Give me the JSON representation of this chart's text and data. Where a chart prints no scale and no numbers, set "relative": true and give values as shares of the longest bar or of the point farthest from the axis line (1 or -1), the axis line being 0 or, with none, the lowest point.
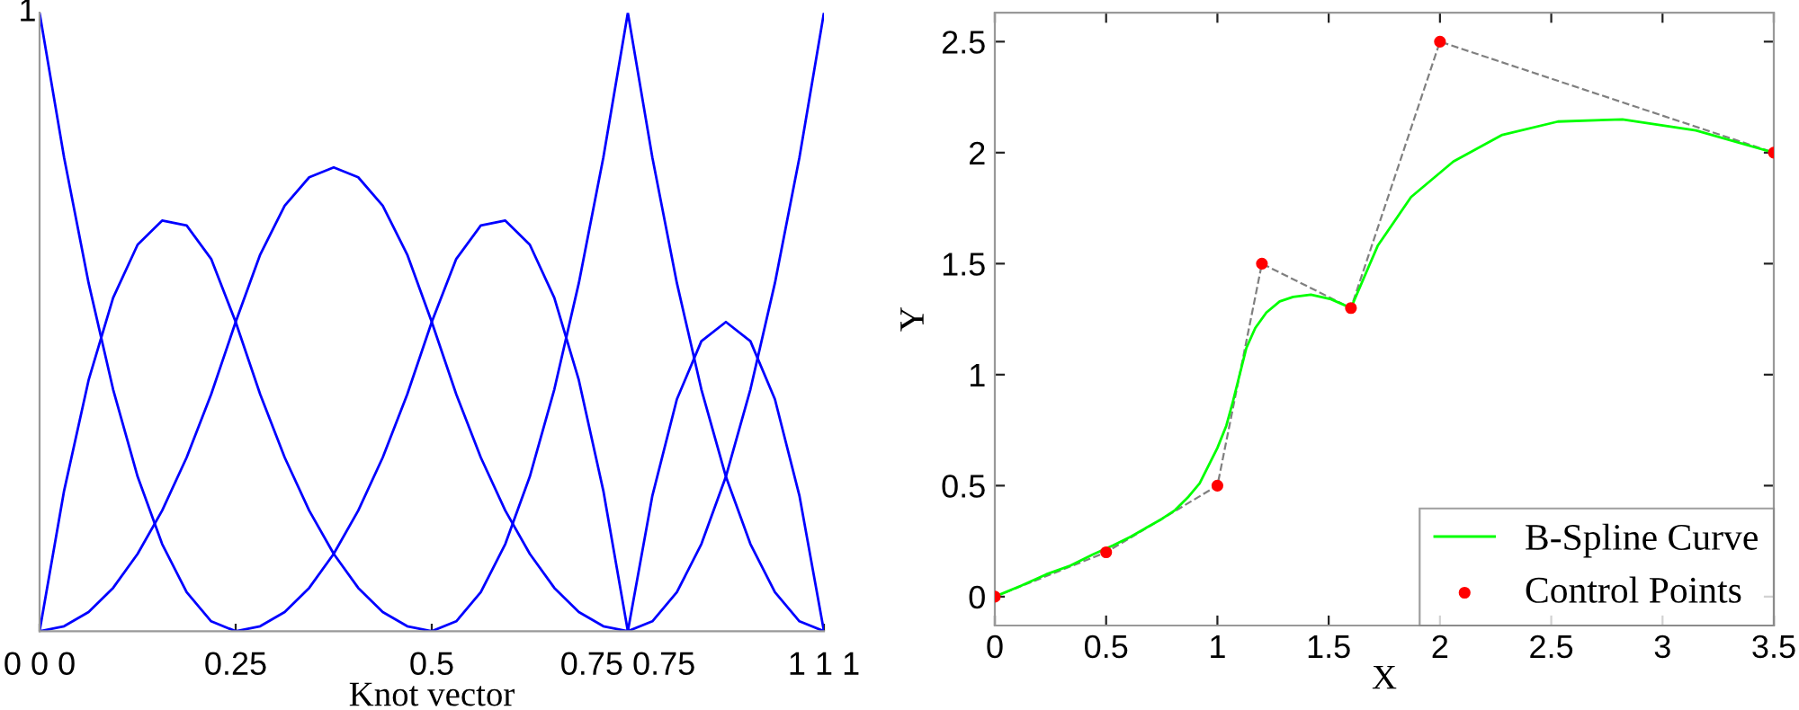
{
  "chart_data": [
    {
      "type": "line",
      "xlabel": "Knot vector",
      "xlim": [
        0,
        1
      ],
      "relative": true,
      "annotations": [
        "1"
      ],
      "xticks": [
        {
          "value": 0,
          "label": "0 0 0"
        },
        0.25,
        0.5,
        {
          "value": 0.75,
          "label": "0.75 0.75"
        },
        {
          "value": 1,
          "label": "1 1 1"
        }
      ],
      "grid": false,
      "legend": false,
      "marker": "none",
      "line_style": "solid",
      "series": [
        {
          "color": "#0000ff",
          "x": [
            0,
            0.03125,
            0.0625,
            0.09375,
            0.125,
            0.15625,
            0.1875,
            0.21875,
            0.25
          ],
          "values": [
            1,
            0.766,
            0.563,
            0.391,
            0.25,
            0.141,
            0.063,
            0.016,
            0
          ]
        },
        {
          "color": "#0000ff",
          "x": [
            0,
            0.03125,
            0.0625,
            0.09375,
            0.125,
            0.15625,
            0.1875,
            0.21875,
            0.25,
            0.28125,
            0.3125,
            0.34375,
            0.375,
            0.40625,
            0.4375,
            0.46875,
            0.5
          ],
          "values": [
            0,
            0.227,
            0.406,
            0.539,
            0.625,
            0.664,
            0.656,
            0.602,
            0.5,
            0.383,
            0.281,
            0.195,
            0.125,
            0.07,
            0.031,
            0.008,
            0
          ]
        },
        {
          "color": "#0000ff",
          "x": [
            0,
            0.03125,
            0.0625,
            0.09375,
            0.125,
            0.15625,
            0.1875,
            0.21875,
            0.25,
            0.28125,
            0.3125,
            0.34375,
            0.375,
            0.40625,
            0.4375,
            0.46875,
            0.5,
            0.53125,
            0.5625,
            0.59375,
            0.625,
            0.65625,
            0.6875,
            0.71875,
            0.75
          ],
          "values": [
            0,
            0.008,
            0.031,
            0.07,
            0.125,
            0.195,
            0.281,
            0.383,
            0.5,
            0.609,
            0.688,
            0.734,
            0.75,
            0.734,
            0.688,
            0.609,
            0.5,
            0.383,
            0.281,
            0.195,
            0.125,
            0.07,
            0.031,
            0.008,
            0
          ]
        },
        {
          "color": "#0000ff",
          "x": [
            0.25,
            0.28125,
            0.3125,
            0.34375,
            0.375,
            0.40625,
            0.4375,
            0.46875,
            0.5,
            0.53125,
            0.5625,
            0.59375,
            0.625,
            0.65625,
            0.6875,
            0.71875,
            0.75
          ],
          "values": [
            0,
            0.008,
            0.031,
            0.07,
            0.125,
            0.195,
            0.281,
            0.383,
            0.5,
            0.602,
            0.656,
            0.664,
            0.625,
            0.539,
            0.406,
            0.227,
            0
          ]
        },
        {
          "color": "#0000ff",
          "x": [
            0.5,
            0.53125,
            0.5625,
            0.59375,
            0.625,
            0.65625,
            0.6875,
            0.71875,
            0.75,
            0.78125,
            0.8125,
            0.84375,
            0.875,
            0.90625,
            0.9375,
            0.96875,
            1
          ],
          "values": [
            0,
            0.016,
            0.063,
            0.141,
            0.25,
            0.391,
            0.563,
            0.766,
            1,
            0.766,
            0.563,
            0.391,
            0.25,
            0.141,
            0.063,
            0.016,
            0
          ]
        },
        {
          "color": "#0000ff",
          "x": [
            0.75,
            0.78125,
            0.8125,
            0.84375,
            0.875,
            0.90625,
            0.9375,
            0.96875,
            1
          ],
          "values": [
            0,
            0.219,
            0.375,
            0.469,
            0.5,
            0.469,
            0.375,
            0.219,
            0
          ]
        },
        {
          "color": "#0000ff",
          "x": [
            0.75,
            0.78125,
            0.8125,
            0.84375,
            0.875,
            0.90625,
            0.9375,
            0.96875,
            1
          ],
          "values": [
            0,
            0.016,
            0.063,
            0.141,
            0.25,
            0.391,
            0.563,
            0.766,
            1
          ]
        }
      ]
    },
    {
      "type": "line",
      "xlabel": "X",
      "ylabel": "Y",
      "xlim": [
        0,
        3.5
      ],
      "ylim": [
        -0.13,
        2.63
      ],
      "xticks": [
        0,
        0.5,
        1,
        1.5,
        2,
        2.5,
        3,
        3.5
      ],
      "yticks": [
        0,
        0.5,
        1,
        1.5,
        2,
        2.5
      ],
      "grid": false,
      "legend": "bottom right",
      "series": [
        {
          "type": "line",
          "line_style": "dashed",
          "marker": "none",
          "color": "#808080",
          "x": [
            0,
            0.5,
            1,
            1.2,
            1.6,
            2,
            3.5
          ],
          "values": [
            0,
            0.2,
            0.5,
            1.5,
            1.3,
            2.5,
            2
          ]
        },
        {
          "type": "line",
          "name": "B-Spline Curve",
          "line_style": "solid",
          "marker": "none",
          "color": "#00ff00",
          "x": [
            0,
            0.12,
            0.23,
            0.34,
            0.44,
            0.53,
            0.61,
            0.68,
            0.75,
            0.81,
            0.87,
            0.92,
            0.96,
            1.0,
            1.04,
            1.07,
            1.1,
            1.13,
            1.17,
            1.22,
            1.28,
            1.34,
            1.42,
            1.51,
            1.6,
            1.72,
            1.87,
            2.06,
            2.28,
            2.53,
            2.82,
            3.15,
            3.5
          ],
          "values": [
            0,
            0.05,
            0.1,
            0.14,
            0.19,
            0.23,
            0.27,
            0.31,
            0.35,
            0.39,
            0.45,
            0.51,
            0.59,
            0.67,
            0.77,
            0.88,
            1.0,
            1.12,
            1.21,
            1.28,
            1.33,
            1.35,
            1.36,
            1.34,
            1.3,
            1.58,
            1.8,
            1.96,
            2.08,
            2.14,
            2.15,
            2.1,
            2
          ]
        },
        {
          "type": "scatter",
          "name": "Control Points",
          "marker": "circle",
          "color": "#ff0000",
          "x": [
            0,
            0.5,
            1,
            1.2,
            1.6,
            2,
            3.5
          ],
          "values": [
            0,
            0.2,
            0.5,
            1.5,
            1.3,
            2.5,
            2
          ]
        }
      ]
    }
  ]
}
